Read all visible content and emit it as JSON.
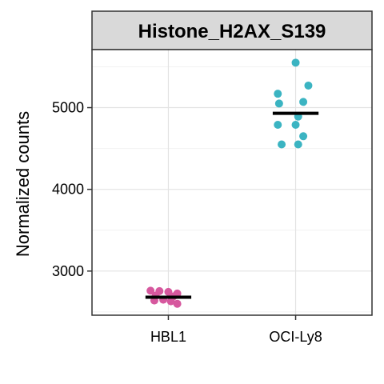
{
  "chart_data": {
    "type": "scatter",
    "title": "Histone_H2AX_S139",
    "xlabel": "",
    "ylabel": "Normalized counts",
    "categories": [
      "HBL1",
      "OCI-Ly8"
    ],
    "ylim": [
      2460,
      5710
    ],
    "yticks": [
      3000,
      4000,
      5000
    ],
    "grid": true,
    "series": [
      {
        "category": "HBL1",
        "color": "#D6589E",
        "mean": 2680,
        "points": [
          {
            "x": 0.86,
            "y": 2760
          },
          {
            "x": 0.93,
            "y": 2755
          },
          {
            "x": 1.0,
            "y": 2745
          },
          {
            "x": 1.07,
            "y": 2725
          },
          {
            "x": 0.9,
            "y": 2700
          },
          {
            "x": 1.04,
            "y": 2690
          },
          {
            "x": 0.89,
            "y": 2640
          },
          {
            "x": 0.96,
            "y": 2650
          },
          {
            "x": 1.02,
            "y": 2630
          },
          {
            "x": 1.07,
            "y": 2600
          }
        ]
      },
      {
        "category": "OCI-Ly8",
        "color": "#3BB4C2",
        "mean": 4930,
        "points": [
          {
            "x": 2.0,
            "y": 5550
          },
          {
            "x": 2.1,
            "y": 5270
          },
          {
            "x": 1.86,
            "y": 5170
          },
          {
            "x": 2.06,
            "y": 5070
          },
          {
            "x": 1.87,
            "y": 5050
          },
          {
            "x": 2.02,
            "y": 4890
          },
          {
            "x": 1.86,
            "y": 4790
          },
          {
            "x": 2.0,
            "y": 4790
          },
          {
            "x": 2.06,
            "y": 4650
          },
          {
            "x": 1.89,
            "y": 4550
          },
          {
            "x": 2.02,
            "y": 4550
          }
        ]
      }
    ]
  }
}
